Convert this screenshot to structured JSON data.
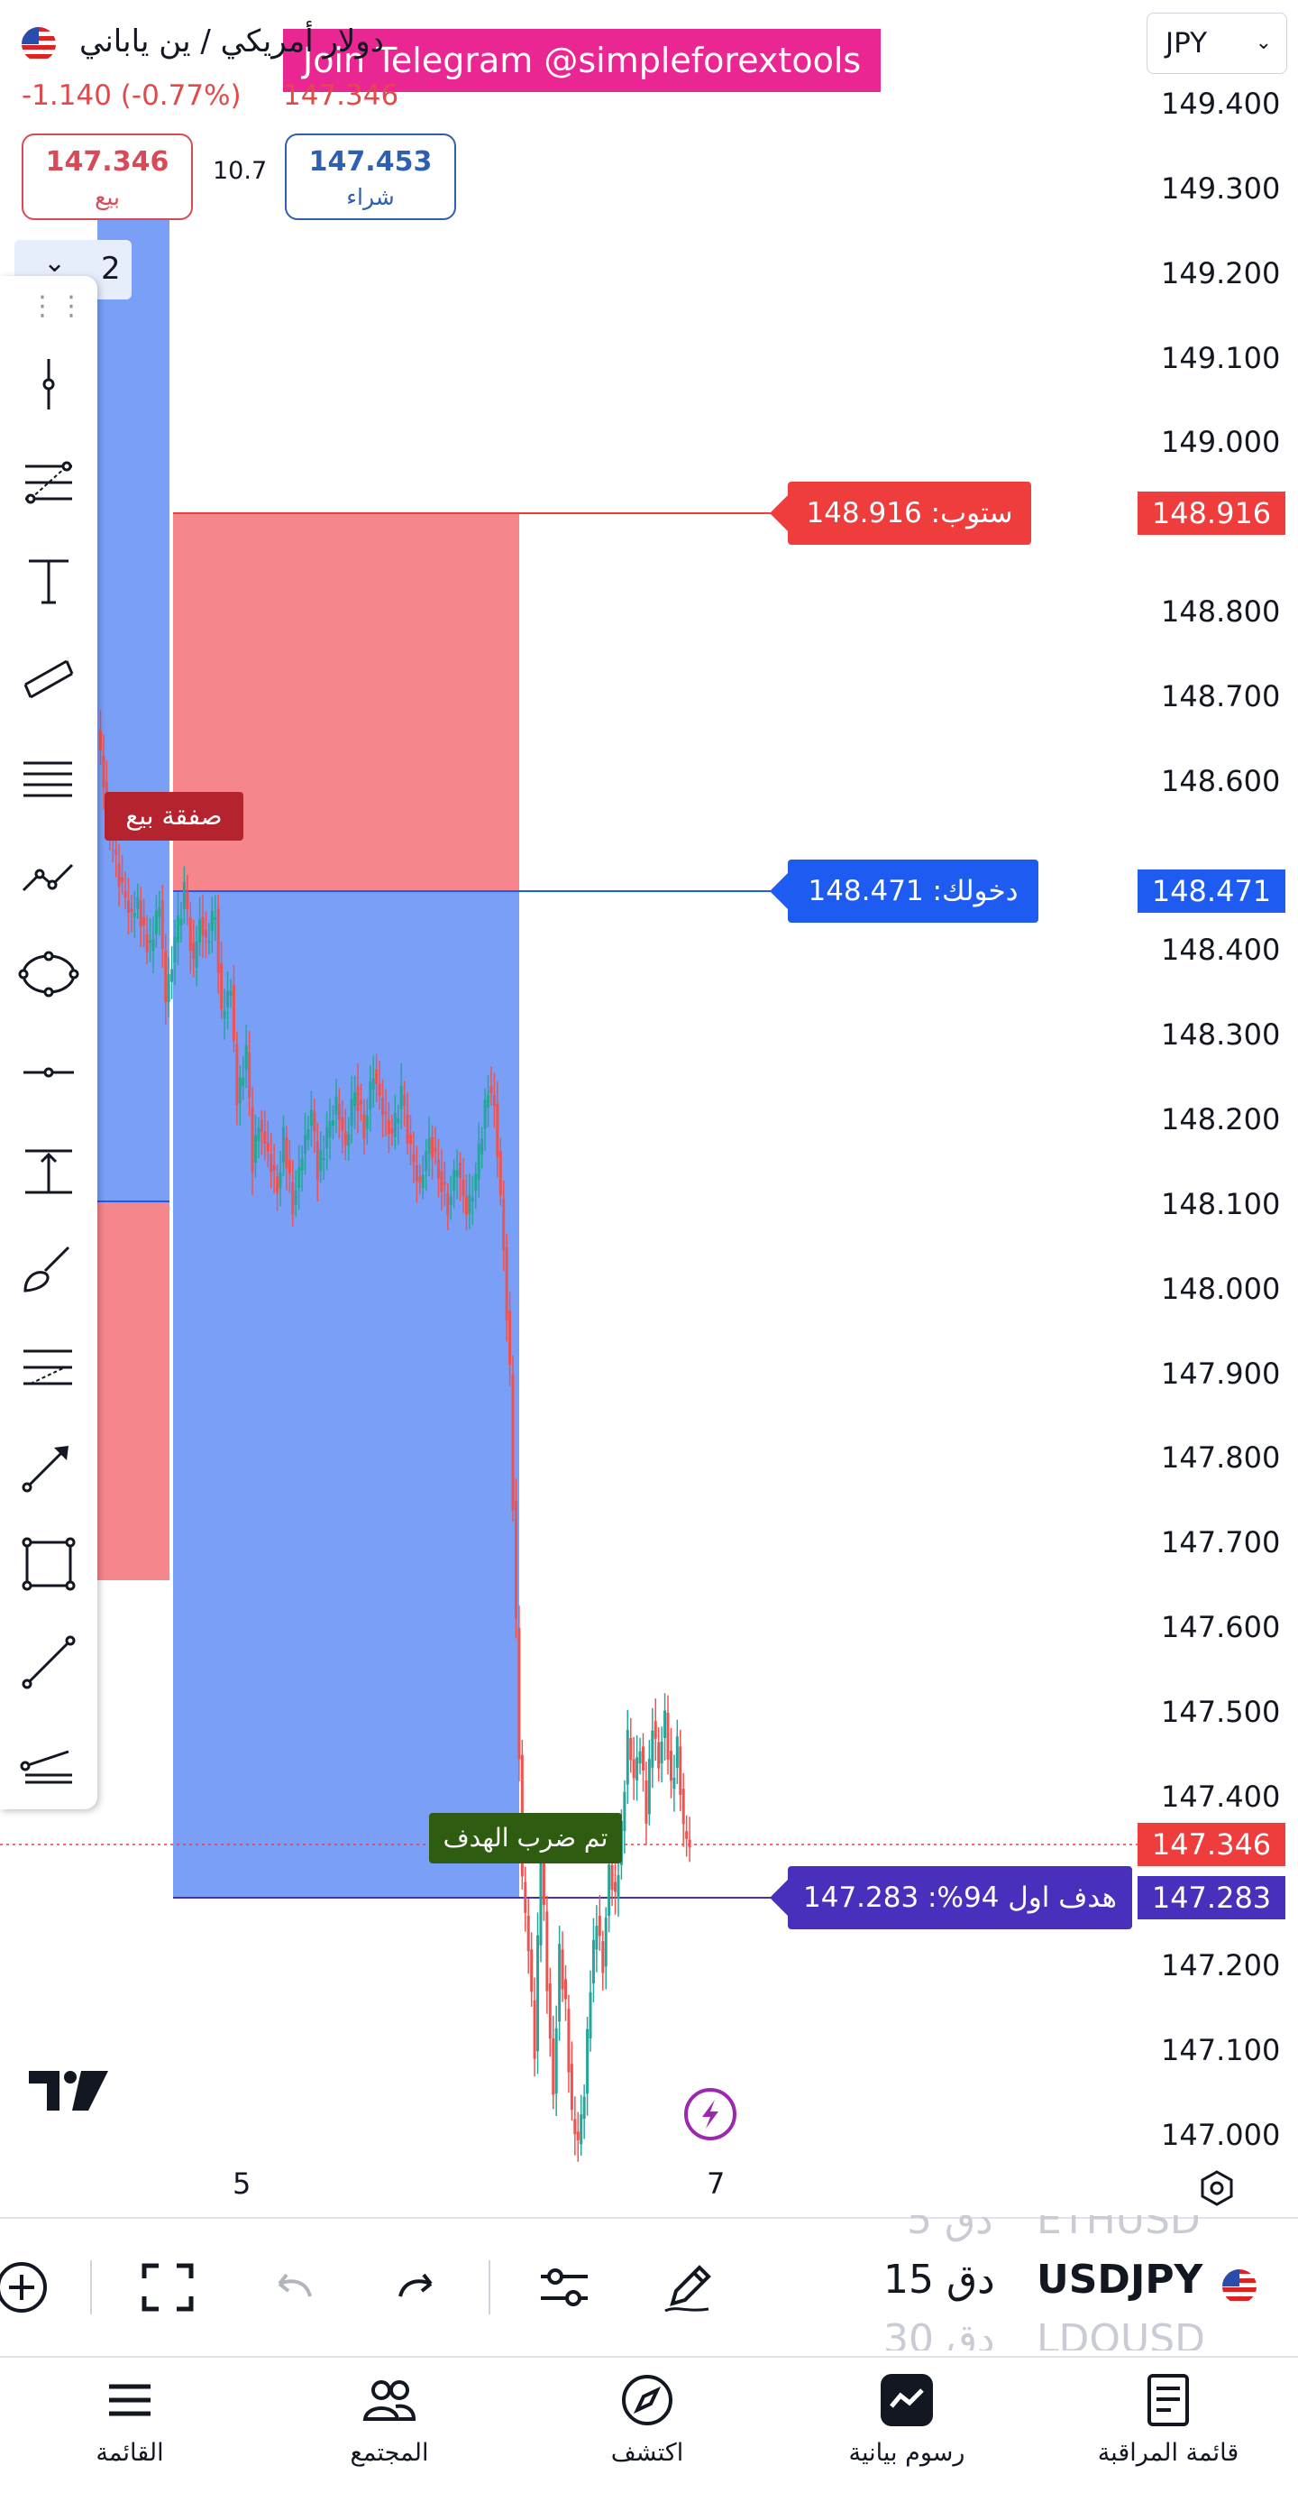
{
  "header": {
    "symbol_title": "دولار أمريكي / ين ياباني",
    "change": "-1.140 (-0.77%)",
    "last": "147.346",
    "bid": {
      "value": "147.346",
      "label": "بيع"
    },
    "spread": "10.7",
    "ask": {
      "value": "147.453",
      "label": "شراء"
    },
    "banner": "Join Telegram @simpleforextools",
    "currency": "JPY",
    "interval_badge": "2"
  },
  "colors": {
    "up": "#26a69a",
    "down": "#ef5350",
    "stop": "#ef3c3c",
    "entry": "#1e5bf0",
    "target": "#4a2fbd",
    "last": "#ef3c3c",
    "zone_red": "#f5868c",
    "zone_blue": "#7a9ff7"
  },
  "chart_data": {
    "type": "candlestick",
    "symbol": "USDJPY",
    "y_ticks": [
      "149.400",
      "149.300",
      "149.200",
      "149.100",
      "149.000",
      "148.800",
      "148.700",
      "148.600",
      "148.400",
      "148.300",
      "148.200",
      "148.100",
      "148.000",
      "147.900",
      "147.800",
      "147.700",
      "147.600",
      "147.500",
      "147.400",
      "147.200",
      "147.100",
      "147.000"
    ],
    "x_ticks": [
      "5",
      "7"
    ],
    "ylim": [
      147.0,
      149.4
    ],
    "levels": {
      "stop": {
        "value": "148.916",
        "label": "ستوب: 148.916"
      },
      "entry": {
        "value": "148.471",
        "label": "دخولك: 148.471"
      },
      "target": {
        "value": "147.283",
        "label": "هدف اول 94%: 147.283"
      },
      "last": {
        "value": "147.346"
      }
    },
    "annotations": {
      "sell_trade": "صفقة بيع",
      "target_hit": "تم ضرب الهدف"
    },
    "price_path": [
      [
        0,
        148.66
      ],
      [
        4,
        148.6
      ],
      [
        10,
        148.52
      ],
      [
        16,
        148.47
      ],
      [
        22,
        148.44
      ],
      [
        26,
        148.46
      ],
      [
        30,
        148.42
      ],
      [
        34,
        148.4
      ],
      [
        40,
        148.46
      ],
      [
        44,
        148.34
      ],
      [
        50,
        148.41
      ],
      [
        56,
        148.47
      ],
      [
        62,
        148.38
      ],
      [
        66,
        148.44
      ],
      [
        70,
        148.41
      ],
      [
        76,
        148.45
      ],
      [
        80,
        148.32
      ],
      [
        86,
        148.36
      ],
      [
        90,
        148.22
      ],
      [
        96,
        148.28
      ],
      [
        100,
        148.15
      ],
      [
        104,
        148.2
      ],
      [
        110,
        148.16
      ],
      [
        116,
        148.12
      ],
      [
        120,
        148.18
      ],
      [
        126,
        148.1
      ],
      [
        132,
        148.16
      ],
      [
        138,
        148.21
      ],
      [
        142,
        148.14
      ],
      [
        148,
        148.18
      ],
      [
        154,
        148.22
      ],
      [
        160,
        148.17
      ],
      [
        166,
        148.24
      ],
      [
        172,
        148.19
      ],
      [
        178,
        148.26
      ],
      [
        184,
        148.21
      ],
      [
        190,
        148.18
      ],
      [
        196,
        148.23
      ],
      [
        202,
        148.16
      ],
      [
        208,
        148.12
      ],
      [
        214,
        148.18
      ],
      [
        220,
        148.14
      ],
      [
        226,
        148.1
      ],
      [
        232,
        148.15
      ],
      [
        238,
        148.09
      ],
      [
        244,
        148.13
      ],
      [
        248,
        148.19
      ],
      [
        252,
        148.24
      ],
      [
        256,
        148.22
      ],
      [
        262,
        148.05
      ],
      [
        266,
        147.9
      ],
      [
        270,
        147.6
      ],
      [
        274,
        147.3
      ],
      [
        278,
        147.22
      ],
      [
        282,
        147.1
      ],
      [
        286,
        147.35
      ],
      [
        290,
        147.18
      ],
      [
        294,
        147.05
      ],
      [
        298,
        147.22
      ],
      [
        302,
        147.15
      ],
      [
        306,
        147.02
      ],
      [
        310,
        146.99
      ],
      [
        314,
        147.05
      ],
      [
        318,
        147.18
      ],
      [
        322,
        147.26
      ],
      [
        326,
        147.2
      ],
      [
        330,
        147.32
      ],
      [
        334,
        147.28
      ],
      [
        338,
        147.36
      ],
      [
        342,
        147.47
      ],
      [
        346,
        147.42
      ],
      [
        350,
        147.46
      ],
      [
        354,
        147.38
      ],
      [
        358,
        147.49
      ],
      [
        362,
        147.44
      ],
      [
        366,
        147.5
      ],
      [
        370,
        147.41
      ],
      [
        374,
        147.46
      ],
      [
        378,
        147.36
      ],
      [
        382,
        147.34
      ]
    ]
  },
  "toolbar": {
    "tools": [
      "crosshair-icon",
      "fib-retracement-icon",
      "text-icon",
      "parallel-channel-icon",
      "pitchfork-icon",
      "path-icon",
      "ellipse-icon",
      "horizontal-ray-icon",
      "date-price-range-icon",
      "brush-icon",
      "fib-extension-icon",
      "arrow-icon",
      "rectangle-icon",
      "trend-line-icon",
      "regression-icon"
    ]
  },
  "bottom": {
    "symbols": [
      {
        "interval": "5 دق",
        "symbol": "ETHUSD"
      },
      {
        "interval": "15 دق",
        "symbol": "USDJPY"
      },
      {
        "interval": "30 دق",
        "symbol": "LDOUSD"
      }
    ],
    "nav": [
      {
        "label": "القائمة",
        "icon": "menu-icon"
      },
      {
        "label": "المجتمع",
        "icon": "community-icon"
      },
      {
        "label": "اكتشف",
        "icon": "compass-icon"
      },
      {
        "label": "رسوم بيانية",
        "icon": "chart-icon"
      },
      {
        "label": "قائمة المراقبة",
        "icon": "watchlist-icon"
      }
    ]
  }
}
